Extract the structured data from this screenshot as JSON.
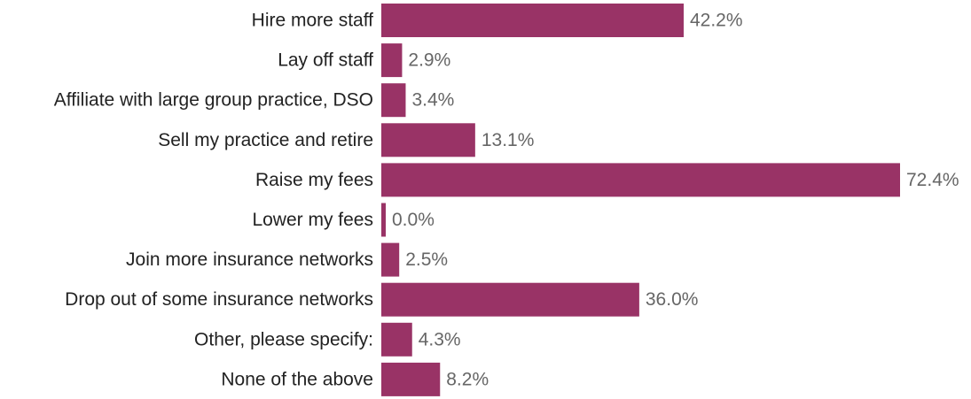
{
  "chart_data": {
    "type": "bar",
    "orientation": "horizontal",
    "categories": [
      "Hire more staff",
      "Lay off staff",
      "Affiliate with large group practice, DSO",
      "Sell my practice and retire",
      "Raise my fees",
      "Lower my fees",
      "Join more insurance networks",
      "Drop out of some insurance networks",
      "Other, please specify:",
      "None of the above"
    ],
    "values": [
      42.2,
      2.9,
      3.4,
      13.1,
      72.4,
      0.0,
      2.5,
      36.0,
      4.3,
      8.2
    ],
    "value_labels": [
      "42.2%",
      "2.9%",
      "3.4%",
      "13.1%",
      "72.4%",
      "0.0%",
      "2.5%",
      "36.0%",
      "4.3%",
      "8.2%"
    ],
    "unit": "%",
    "bar_color": "#993366",
    "grid": false,
    "legend": "none"
  }
}
